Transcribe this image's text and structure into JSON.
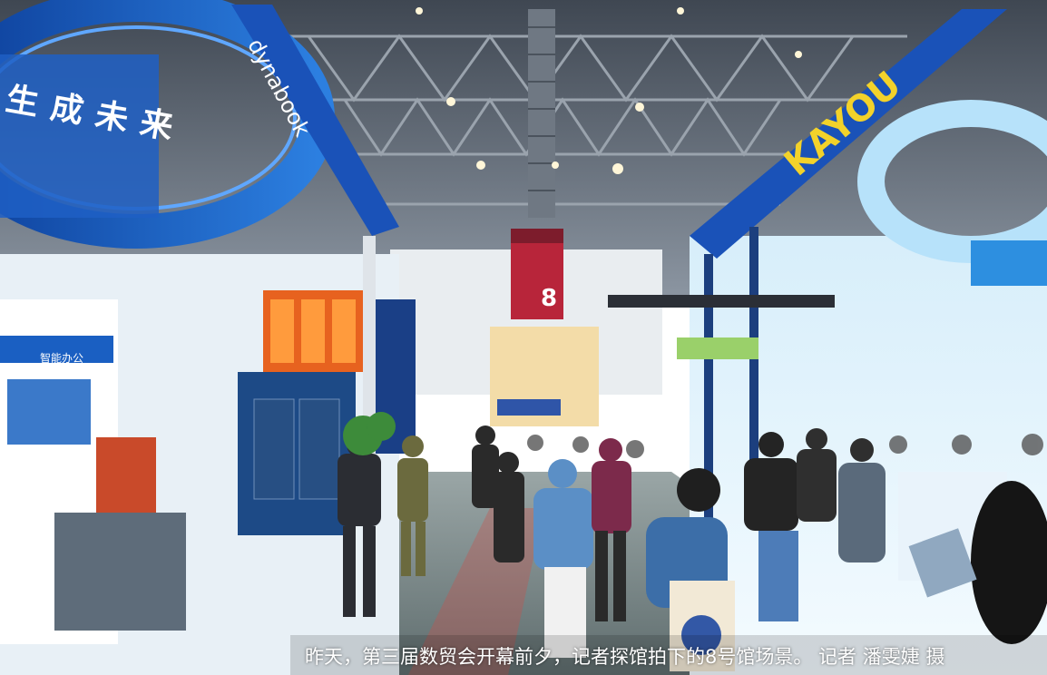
{
  "photo": {
    "caption": "昨天，第三届数贸会开幕前夕，记者探馆拍下的8号馆场景。 记者 潘雯婕 摄",
    "signs": {
      "left_ring": "生成未来",
      "dynabook": "dynabook",
      "kayou": "KAYOU",
      "hall_banner_number": "8",
      "left_panel": "智能办公"
    }
  },
  "colors": {
    "ceiling": "#5b6471",
    "floor": "#7a8a8c",
    "blue_accent": "#1f5fc4",
    "light_blue": "#bfe4f5",
    "yellow_sign": "#f3d22a",
    "red_banner": "#b8253a"
  }
}
